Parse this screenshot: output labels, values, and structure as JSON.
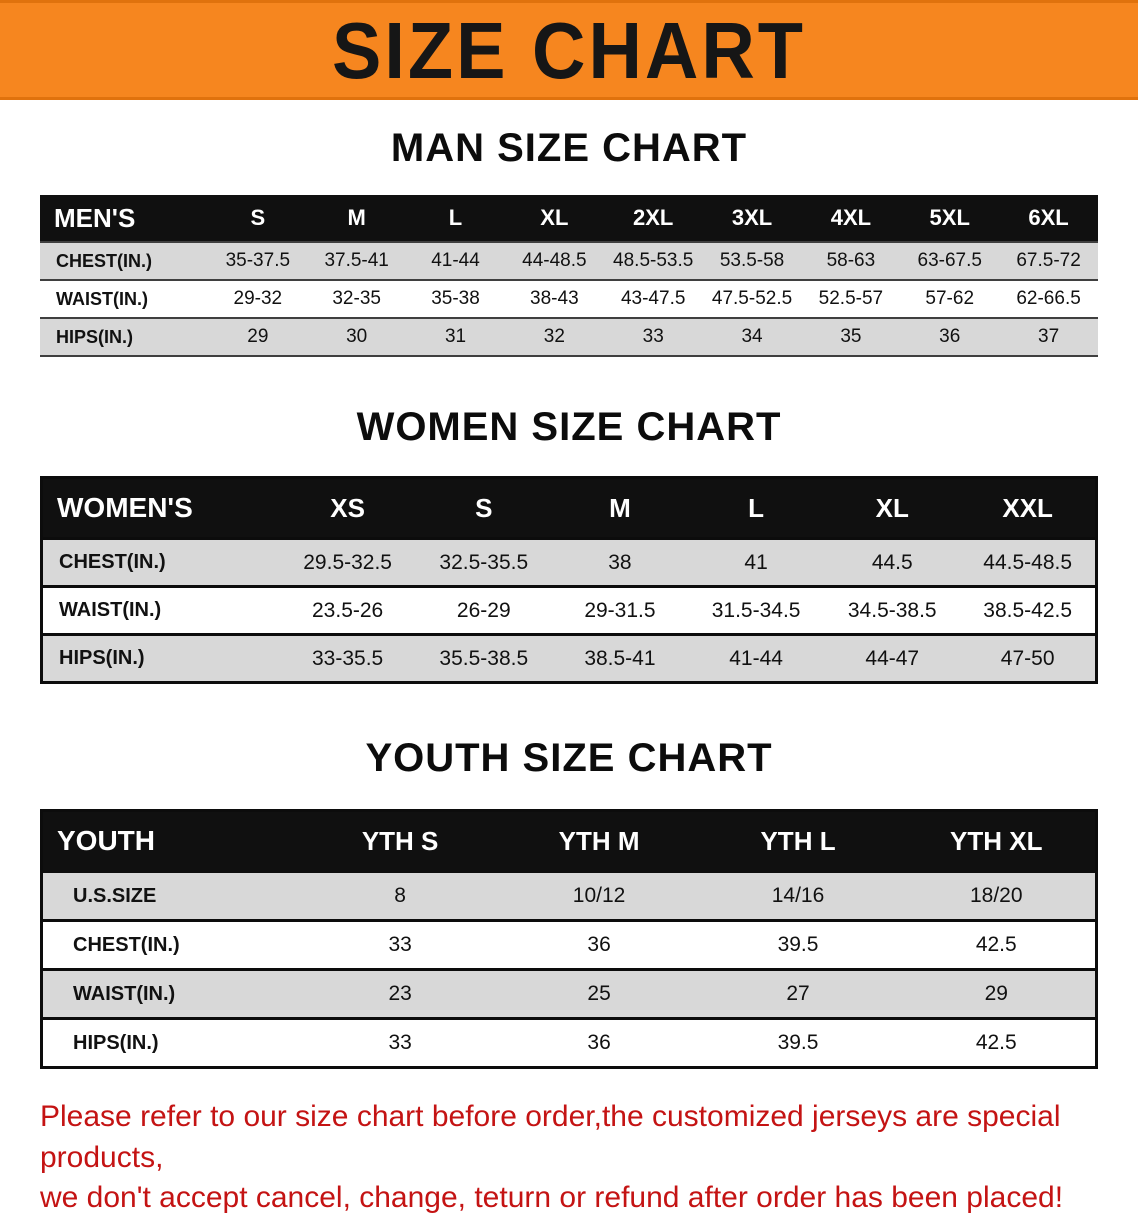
{
  "banner": {
    "title": "SIZE CHART",
    "bg_color": "#f6861f",
    "text_color": "#161616"
  },
  "sections": [
    {
      "id": "men",
      "title": "MAN SIZE CHART",
      "header": [
        "MEN'S",
        "S",
        "M",
        "L",
        "XL",
        "2XL",
        "3XL",
        "4XL",
        "5XL",
        "6XL"
      ],
      "rows": [
        [
          "CHEST(IN.)",
          "35-37.5",
          "37.5-41",
          "41-44",
          "44-48.5",
          "48.5-53.5",
          "53.5-58",
          "58-63",
          "63-67.5",
          "67.5-72"
        ],
        [
          "WAIST(IN.)",
          "29-32",
          "32-35",
          "35-38",
          "38-43",
          "43-47.5",
          "47.5-52.5",
          "52.5-57",
          "57-62",
          "62-66.5"
        ],
        [
          "HIPS(IN.)",
          "29",
          "30",
          "31",
          "32",
          "33",
          "34",
          "35",
          "36",
          "37"
        ]
      ]
    },
    {
      "id": "women",
      "title": "WOMEN SIZE CHART",
      "header": [
        "WOMEN'S",
        "XS",
        "S",
        "M",
        "L",
        "XL",
        "XXL"
      ],
      "rows": [
        [
          "CHEST(IN.)",
          "29.5-32.5",
          "32.5-35.5",
          "38",
          "41",
          "44.5",
          "44.5-48.5"
        ],
        [
          "WAIST(IN.)",
          "23.5-26",
          "26-29",
          "29-31.5",
          "31.5-34.5",
          "34.5-38.5",
          "38.5-42.5"
        ],
        [
          "HIPS(IN.)",
          "33-35.5",
          "35.5-38.5",
          "38.5-41",
          "41-44",
          "44-47",
          "47-50"
        ]
      ]
    },
    {
      "id": "youth",
      "title": "YOUTH SIZE CHART",
      "header": [
        "YOUTH",
        "YTH S",
        "YTH M",
        "YTH L",
        "YTH XL"
      ],
      "rows": [
        [
          "U.S.SIZE",
          "8",
          "10/12",
          "14/16",
          "18/20"
        ],
        [
          "CHEST(IN.)",
          "33",
          "36",
          "39.5",
          "42.5"
        ],
        [
          "WAIST(IN.)",
          "23",
          "25",
          "27",
          "29"
        ],
        [
          "HIPS(IN.)",
          "33",
          "36",
          "39.5",
          "42.5"
        ]
      ]
    }
  ],
  "disclaimer": {
    "line1": "Please refer to our size chart before order,the customized jerseys are special products,",
    "line2": "we don't accept cancel, change, teturn or refund after order has been placed!",
    "color": "#c41313"
  }
}
